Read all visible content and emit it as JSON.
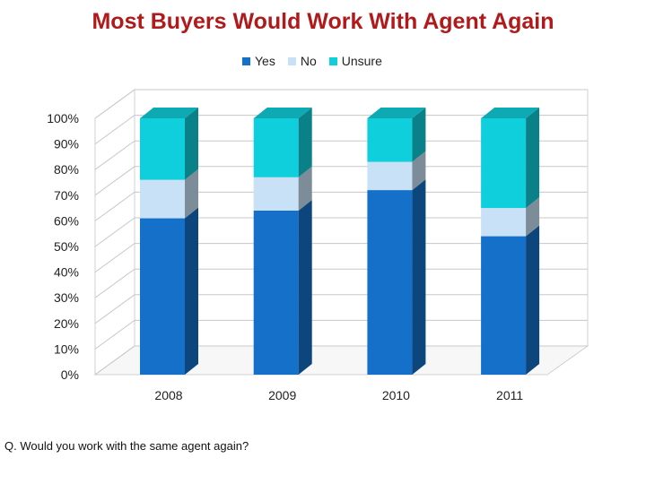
{
  "title": "Most Buyers Would Work With Agent Again",
  "footnote": "Q. Would you work with the same agent again?",
  "colors": {
    "yes": "#1570c9",
    "no": "#c9e1f7",
    "unsure": "#10cfdc",
    "title": "#b01a1a"
  },
  "chart_data": {
    "type": "bar",
    "stacked": true,
    "categories": [
      "2008",
      "2009",
      "2010",
      "2011"
    ],
    "series": [
      {
        "name": "Yes",
        "values": [
          61,
          64,
          72,
          54
        ]
      },
      {
        "name": "No",
        "values": [
          15,
          13,
          11,
          11
        ]
      },
      {
        "name": "Unsure",
        "values": [
          24,
          23,
          17,
          35
        ]
      }
    ],
    "yticks": [
      "0%",
      "10%",
      "20%",
      "30%",
      "40%",
      "50%",
      "60%",
      "70%",
      "80%",
      "90%",
      "100%"
    ],
    "ylim": [
      0,
      100
    ],
    "grid": true,
    "legend": "top",
    "title": "",
    "xlabel": "",
    "ylabel": ""
  }
}
